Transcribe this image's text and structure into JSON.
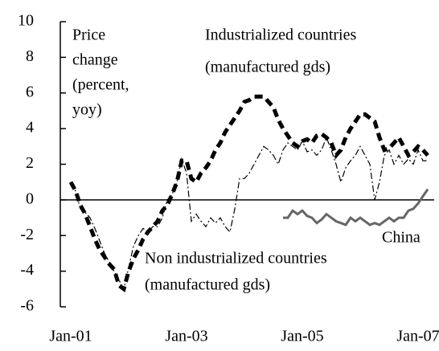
{
  "chart_data": {
    "type": "line",
    "categories": [
      "Jan-01",
      null,
      null,
      null,
      null,
      null,
      null,
      null,
      null,
      null,
      null,
      null,
      null,
      null,
      null,
      null,
      null,
      null,
      null,
      null,
      null,
      null,
      null,
      null,
      "Jan-03",
      null,
      null,
      null,
      null,
      null,
      null,
      null,
      null,
      null,
      null,
      null,
      null,
      null,
      null,
      null,
      null,
      null,
      null,
      null,
      null,
      null,
      null,
      null,
      "Jan-05",
      null,
      null,
      null,
      null,
      null,
      null,
      null,
      null,
      null,
      null,
      null,
      null,
      null,
      null,
      null,
      null,
      null,
      null,
      null,
      null,
      null,
      null,
      null,
      "Jan-07",
      null,
      null
    ],
    "series": [
      {
        "name": "Industrialized countries (manufactured gds)",
        "color": "#000000",
        "style": "thick-dashed",
        "values": [
          1.0,
          0.5,
          -0.3,
          -0.8,
          -1.5,
          -2.2,
          -2.8,
          -3.2,
          -3.6,
          -3.9,
          -4.8,
          -5.0,
          -4.0,
          -3.3,
          -2.8,
          -2.2,
          -1.8,
          -1.5,
          -1.2,
          -0.6,
          -0.3,
          0.3,
          1.0,
          2.2,
          2.2,
          1.2,
          1.0,
          1.5,
          1.8,
          2.2,
          2.8,
          3.2,
          3.8,
          4.2,
          4.6,
          5.0,
          5.5,
          5.6,
          5.8,
          5.8,
          5.8,
          5.5,
          5.2,
          4.5,
          4.0,
          3.6,
          3.2,
          3.0,
          3.3,
          3.4,
          3.2,
          3.6,
          3.7,
          3.5,
          3.2,
          2.5,
          2.8,
          3.5,
          4.0,
          4.4,
          4.8,
          4.8,
          4.6,
          4.4,
          3.5,
          2.8,
          2.9,
          3.2,
          3.5,
          3.0,
          2.5,
          2.7,
          3.0,
          2.8,
          2.5
        ]
      },
      {
        "name": "Non industrialized countries (manufactured gds)",
        "color": "#000000",
        "style": "thin-dashdot",
        "values": [
          1.0,
          0.5,
          -0.5,
          -0.7,
          -1.0,
          -1.6,
          -2.3,
          -3.0,
          -3.5,
          -4.0,
          -4.5,
          -5.0,
          -3.8,
          -2.6,
          -2.0,
          -1.6,
          -1.8,
          -1.5,
          -1.5,
          -1.0,
          0.0,
          0.3,
          1.0,
          2.3,
          1.5,
          -1.2,
          -0.8,
          -1.2,
          -1.5,
          -1.0,
          -1.3,
          -1.0,
          -1.5,
          -1.8,
          -0.5,
          1.2,
          1.2,
          1.5,
          2.0,
          2.5,
          3.0,
          2.8,
          2.5,
          2.0,
          2.8,
          3.2,
          3.0,
          2.8,
          3.3,
          2.7,
          2.8,
          2.5,
          2.8,
          3.5,
          2.8,
          2.0,
          1.0,
          1.8,
          2.2,
          2.5,
          3.0,
          2.5,
          2.0,
          0.0,
          1.0,
          2.5,
          2.8,
          2.0,
          2.5,
          2.0,
          2.3,
          2.0,
          2.8,
          2.2,
          2.2
        ]
      },
      {
        "name": "China",
        "color": "#666666",
        "style": "solid",
        "values": [
          null,
          null,
          null,
          null,
          null,
          null,
          null,
          null,
          null,
          null,
          null,
          null,
          null,
          null,
          null,
          null,
          null,
          null,
          null,
          null,
          null,
          null,
          null,
          null,
          null,
          null,
          null,
          null,
          null,
          null,
          null,
          null,
          null,
          null,
          null,
          null,
          null,
          null,
          null,
          null,
          null,
          null,
          null,
          null,
          -1.0,
          -1.0,
          -0.6,
          -0.8,
          -0.6,
          -0.9,
          -1.0,
          -1.3,
          -1.1,
          -0.8,
          -1.0,
          -1.2,
          -1.3,
          -1.4,
          -1.0,
          -1.2,
          -1.0,
          -1.2,
          -1.4,
          -1.3,
          -1.4,
          -1.2,
          -1.0,
          -1.2,
          -1.0,
          -1.0,
          -0.6,
          -0.5,
          -0.2,
          0.2,
          0.6
        ]
      }
    ],
    "ylabel": [
      "Price",
      "change",
      "(percent,",
      "yoy)"
    ],
    "series_labels": [
      [
        "Industrialized countries",
        "(manufactured gds)"
      ],
      [
        "Non industrialized countries",
        "(manufactured gds)"
      ],
      [
        "China"
      ]
    ],
    "ylim": [
      -6,
      10
    ],
    "yticks": [
      -6,
      -4,
      -2,
      0,
      2,
      4,
      6,
      8,
      10
    ]
  }
}
